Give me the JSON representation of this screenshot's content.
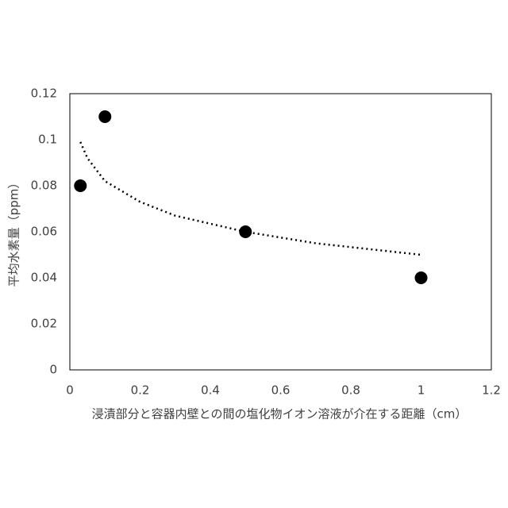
{
  "chart_data": {
    "type": "scatter",
    "x_label": "浸漬部分と容器内壁との間の塩化物イオン溶液が介在する距離（cm）",
    "y_label": "平均水素量（ppm）",
    "x": [
      0.03,
      0.1,
      0.5,
      1
    ],
    "values": [
      0.08,
      0.11,
      0.06,
      0.04
    ],
    "color": "#000000",
    "trendline": {
      "x": [
        0.03,
        0.05,
        0.1,
        0.2,
        0.3,
        0.5,
        0.7,
        1
      ],
      "values": [
        0.099,
        0.092,
        0.082,
        0.073,
        0.067,
        0.06,
        0.055,
        0.05
      ]
    },
    "xlim": [
      0,
      1.2
    ],
    "xticks": [
      0,
      0.2,
      0.4,
      0.6,
      0.8,
      1,
      1.2
    ],
    "ylim": [
      0,
      0.12
    ],
    "yticks": [
      0,
      0.02,
      0.04,
      0.06,
      0.08,
      0.1,
      0.12
    ],
    "grid": false
  }
}
